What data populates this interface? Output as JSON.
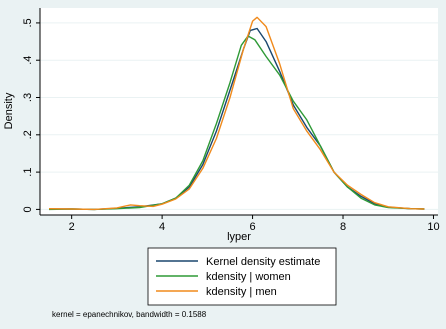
{
  "chart_data": {
    "type": "line",
    "xlabel": "lyper",
    "ylabel": "Density",
    "xlim": [
      1.3,
      10.1
    ],
    "ylim": [
      -0.015,
      0.54
    ],
    "xticks": [
      {
        "value": 2,
        "label": "2"
      },
      {
        "value": 4,
        "label": "4"
      },
      {
        "value": 6,
        "label": "6"
      },
      {
        "value": 8,
        "label": "8"
      },
      {
        "value": 10,
        "label": "10"
      }
    ],
    "yticks": [
      {
        "value": 0,
        "label": "0"
      },
      {
        "value": 0.1,
        "label": ".1"
      },
      {
        "value": 0.2,
        "label": ".2"
      },
      {
        "value": 0.3,
        "label": ".3"
      },
      {
        "value": 0.4,
        "label": ".4"
      },
      {
        "value": 0.5,
        "label": ".5"
      }
    ],
    "grid": true,
    "legend_position": "bottom",
    "series": [
      {
        "name": "Kernel density estimate",
        "color": "#1a476f",
        "points": [
          [
            1.5,
            0.001
          ],
          [
            2.0,
            0.001
          ],
          [
            2.5,
            0.0
          ],
          [
            3.0,
            0.003
          ],
          [
            3.5,
            0.007
          ],
          [
            4.0,
            0.015
          ],
          [
            4.3,
            0.03
          ],
          [
            4.6,
            0.06
          ],
          [
            4.9,
            0.12
          ],
          [
            5.2,
            0.21
          ],
          [
            5.5,
            0.32
          ],
          [
            5.8,
            0.43
          ],
          [
            5.95,
            0.48
          ],
          [
            6.1,
            0.485
          ],
          [
            6.3,
            0.45
          ],
          [
            6.6,
            0.37
          ],
          [
            6.9,
            0.28
          ],
          [
            7.2,
            0.22
          ],
          [
            7.5,
            0.17
          ],
          [
            7.8,
            0.1
          ],
          [
            8.1,
            0.06
          ],
          [
            8.4,
            0.035
          ],
          [
            8.7,
            0.015
          ],
          [
            9.0,
            0.006
          ],
          [
            9.5,
            0.002
          ],
          [
            9.8,
            0.001
          ]
        ]
      },
      {
        "name": "kdensity | women",
        "color": "#2e9a36",
        "points": [
          [
            1.5,
            0.0
          ],
          [
            2.0,
            0.001
          ],
          [
            2.5,
            0.0
          ],
          [
            3.0,
            0.002
          ],
          [
            3.5,
            0.005
          ],
          [
            4.0,
            0.015
          ],
          [
            4.3,
            0.03
          ],
          [
            4.6,
            0.065
          ],
          [
            4.9,
            0.13
          ],
          [
            5.2,
            0.23
          ],
          [
            5.5,
            0.34
          ],
          [
            5.75,
            0.44
          ],
          [
            5.9,
            0.465
          ],
          [
            6.05,
            0.455
          ],
          [
            6.3,
            0.41
          ],
          [
            6.6,
            0.36
          ],
          [
            6.9,
            0.29
          ],
          [
            7.2,
            0.24
          ],
          [
            7.5,
            0.17
          ],
          [
            7.8,
            0.1
          ],
          [
            8.1,
            0.06
          ],
          [
            8.4,
            0.03
          ],
          [
            8.7,
            0.012
          ],
          [
            9.0,
            0.005
          ],
          [
            9.5,
            0.002
          ],
          [
            9.8,
            0.001
          ]
        ]
      },
      {
        "name": "kdensity | men",
        "color": "#f08a1c",
        "points": [
          [
            1.5,
            0.002
          ],
          [
            2.0,
            0.001
          ],
          [
            2.5,
            0.0
          ],
          [
            3.0,
            0.004
          ],
          [
            3.3,
            0.012
          ],
          [
            3.5,
            0.01
          ],
          [
            3.8,
            0.008
          ],
          [
            4.0,
            0.014
          ],
          [
            4.3,
            0.028
          ],
          [
            4.6,
            0.055
          ],
          [
            4.9,
            0.11
          ],
          [
            5.2,
            0.19
          ],
          [
            5.5,
            0.3
          ],
          [
            5.8,
            0.43
          ],
          [
            6.0,
            0.505
          ],
          [
            6.1,
            0.515
          ],
          [
            6.3,
            0.49
          ],
          [
            6.6,
            0.39
          ],
          [
            6.9,
            0.27
          ],
          [
            7.2,
            0.21
          ],
          [
            7.5,
            0.16
          ],
          [
            7.8,
            0.1
          ],
          [
            8.1,
            0.065
          ],
          [
            8.4,
            0.04
          ],
          [
            8.7,
            0.018
          ],
          [
            9.0,
            0.007
          ],
          [
            9.5,
            0.002
          ],
          [
            9.8,
            0.001
          ]
        ]
      }
    ],
    "note": "kernel = epanechnikov, bandwidth = 0.1588"
  }
}
